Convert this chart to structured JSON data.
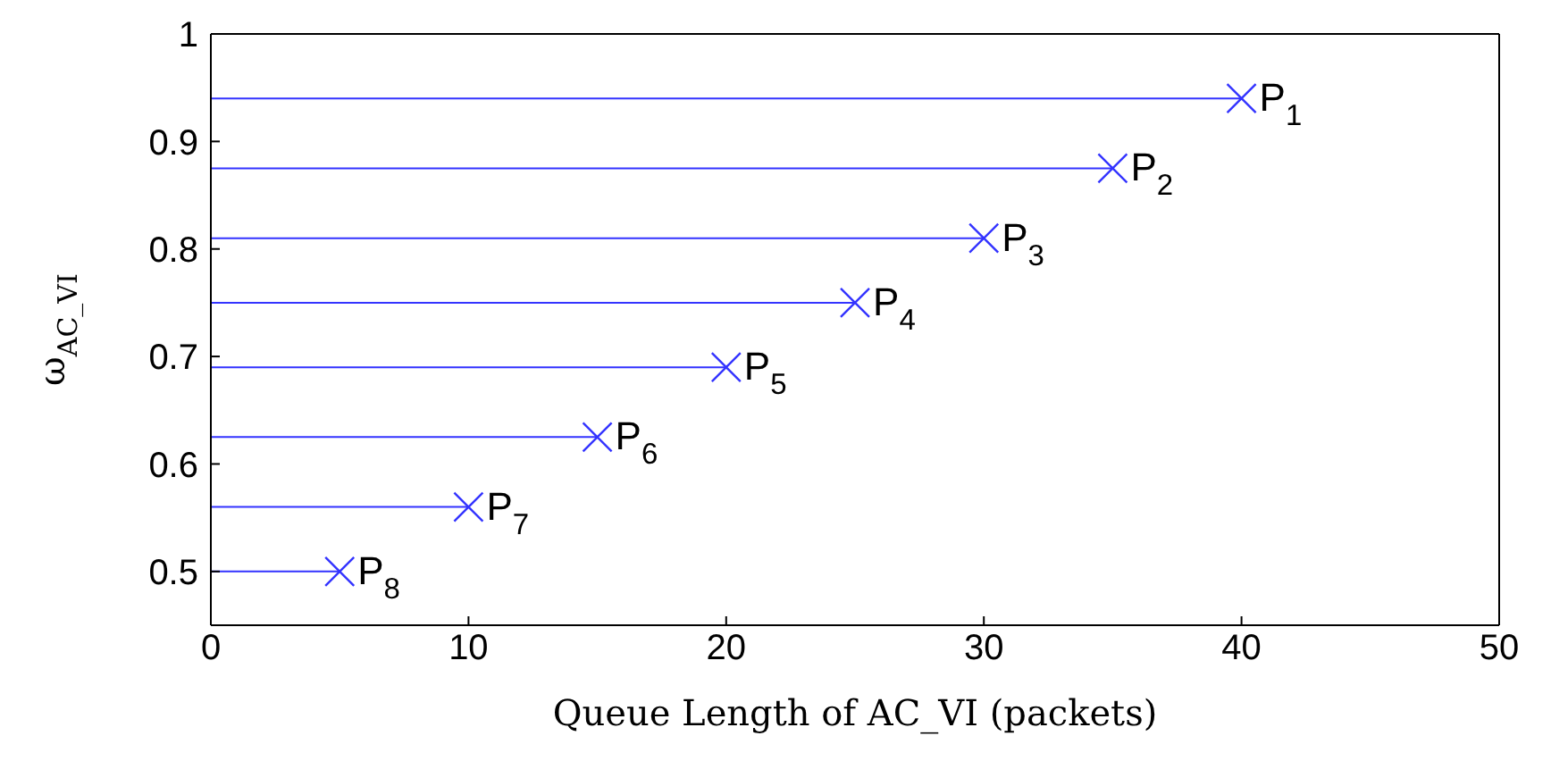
{
  "chart_data": {
    "type": "line",
    "xlabel": "Queue Length of AC_VI (packets)",
    "ylabel": "ω$_{AC_VI}$",
    "xlim": [
      0,
      50
    ],
    "xticks": [
      0,
      10,
      20,
      30,
      40,
      50
    ],
    "ylim": [
      0.45,
      1
    ],
    "yticks": [
      0.5,
      0.6,
      0.7,
      0.8,
      0.9,
      1
    ],
    "series": [
      {
        "name": "P$_{1}$",
        "x": [
          0,
          40
        ],
        "values": [
          0.94,
          0.94
        ],
        "color": "#3333ff"
      },
      {
        "name": "P$_{2}$",
        "x": [
          0,
          35
        ],
        "values": [
          0.875,
          0.875
        ],
        "color": "#3333ff"
      },
      {
        "name": "P$_{3}$",
        "x": [
          0,
          30
        ],
        "values": [
          0.81,
          0.81
        ],
        "color": "#3333ff"
      },
      {
        "name": "P$_{4}$",
        "x": [
          0,
          25
        ],
        "values": [
          0.75,
          0.75
        ],
        "color": "#3333ff"
      },
      {
        "name": "P$_{5}$",
        "x": [
          0,
          20
        ],
        "values": [
          0.69,
          0.69
        ],
        "color": "#3333ff"
      },
      {
        "name": "P$_{6}$",
        "x": [
          0,
          15
        ],
        "values": [
          0.625,
          0.625
        ],
        "color": "#3333ff"
      },
      {
        "name": "P$_{7}$",
        "x": [
          0,
          10
        ],
        "values": [
          0.56,
          0.56
        ],
        "color": "#3333ff"
      },
      {
        "name": "P$_{8}$",
        "x": [
          0,
          5
        ],
        "values": [
          0.5,
          0.5
        ],
        "color": "#3333ff"
      },
      {
        "type": "scatter",
        "marker": "cross",
        "x": [
          40,
          35,
          30,
          25,
          20,
          15,
          10,
          5
        ],
        "values": [
          0.94,
          0.875,
          0.81,
          0.75,
          0.69,
          0.625,
          0.56,
          0.5
        ],
        "color": "#3333ff"
      }
    ]
  }
}
